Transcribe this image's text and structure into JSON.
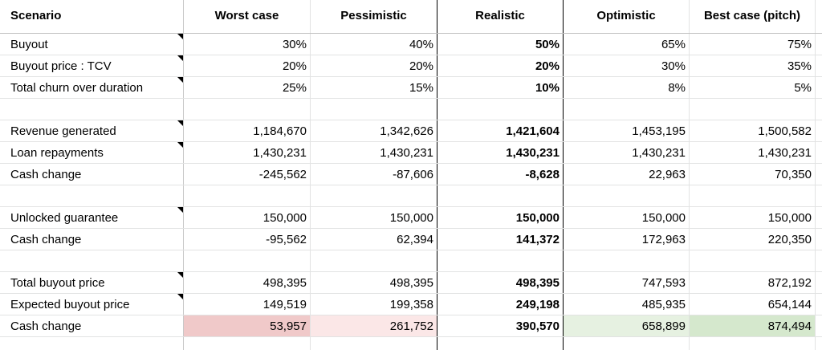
{
  "header": {
    "label": "Scenario",
    "columns": [
      "Worst case",
      "Pessimistic",
      "Realistic",
      "Optimistic",
      "Best case (pitch)"
    ]
  },
  "rows": [
    {
      "label": "Buyout",
      "note": true,
      "values": [
        "30%",
        "40%",
        "50%",
        "65%",
        "75%"
      ]
    },
    {
      "label": "Buyout price : TCV",
      "note": true,
      "values": [
        "20%",
        "20%",
        "20%",
        "30%",
        "35%"
      ]
    },
    {
      "label": "Total churn over duration",
      "note": true,
      "values": [
        "25%",
        "15%",
        "10%",
        "8%",
        "5%"
      ]
    },
    {
      "label": "",
      "note": false,
      "values": [
        "",
        "",
        "",
        "",
        ""
      ]
    },
    {
      "label": "Revenue generated",
      "note": true,
      "values": [
        "1,184,670",
        "1,342,626",
        "1,421,604",
        "1,453,195",
        "1,500,582"
      ]
    },
    {
      "label": "Loan repayments",
      "note": true,
      "values": [
        "1,430,231",
        "1,430,231",
        "1,430,231",
        "1,430,231",
        "1,430,231"
      ]
    },
    {
      "label": "Cash change",
      "note": false,
      "values": [
        "-245,562",
        "-87,606",
        "-8,628",
        "22,963",
        "70,350"
      ]
    },
    {
      "label": "",
      "note": false,
      "values": [
        "",
        "",
        "",
        "",
        ""
      ]
    },
    {
      "label": "Unlocked guarantee",
      "note": true,
      "values": [
        "150,000",
        "150,000",
        "150,000",
        "150,000",
        "150,000"
      ]
    },
    {
      "label": "Cash change",
      "note": false,
      "values": [
        "-95,562",
        "62,394",
        "141,372",
        "172,963",
        "220,350"
      ]
    },
    {
      "label": "",
      "note": false,
      "values": [
        "",
        "",
        "",
        "",
        ""
      ]
    },
    {
      "label": "Total buyout price",
      "note": true,
      "values": [
        "498,395",
        "498,395",
        "498,395",
        "747,593",
        "872,192"
      ]
    },
    {
      "label": "Expected buyout price",
      "note": true,
      "values": [
        "149,519",
        "199,358",
        "249,198",
        "485,935",
        "654,144"
      ]
    },
    {
      "label": "Cash change",
      "note": false,
      "values": [
        "53,957",
        "261,752",
        "390,570",
        "658,899",
        "874,494"
      ]
    }
  ],
  "final_row_colors": [
    "#f0c9c9",
    "#fbe7e7",
    "#ffffff",
    "#e6f1e1",
    "#d5e8cd"
  ]
}
